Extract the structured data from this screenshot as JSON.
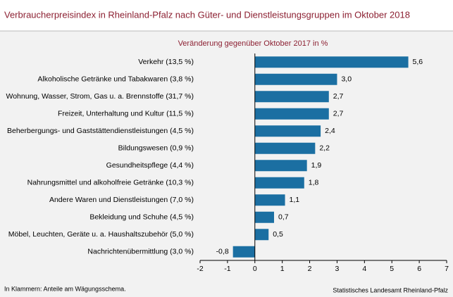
{
  "chart_data": {
    "type": "bar",
    "orientation": "horizontal",
    "title": "Verbraucherpreisindex in Rheinland-Pfalz nach Güter- und Dienstleistungsgruppen im Oktober 2018",
    "subtitle": "Veränderung gegenüber Oktober 2017 in %",
    "categories": [
      "Verkehr (13,5 %)",
      "Alkoholische Getränke und Tabakwaren (3,8 %)",
      "Wohnung, Wasser, Strom, Gas u. a. Brennstoffe (31,7 %)",
      "Freizeit, Unterhaltung und Kultur (11,5 %)",
      "Beherbergungs- und Gaststättendienstleistungen (4,5 %)",
      "Bildungswesen (0,9 %)",
      "Gesundheitspflege (4,4 %)",
      "Nahrungsmittel und alkoholfreie Getränke (10,3 %)",
      "Andere Waren und Dienstleistungen (7,0 %)",
      "Bekleidung und Schuhe (4,5 %)",
      "Möbel, Leuchten, Geräte u. a. Haushaltszubehör (5,0 %)",
      "Nachrichtenübermittlung (3,0 %)"
    ],
    "values": [
      5.6,
      3.0,
      2.7,
      2.7,
      2.4,
      2.2,
      1.9,
      1.8,
      1.1,
      0.7,
      0.5,
      -0.8
    ],
    "value_labels": [
      "5,6",
      "3,0",
      "2,7",
      "2,7",
      "2,4",
      "2,2",
      "1,9",
      "1,8",
      "1,1",
      "0,7",
      "0,5",
      "-0,8"
    ],
    "color": "#1b6fa2",
    "xlim": [
      -2,
      7
    ],
    "xticks": [
      -2,
      -1,
      0,
      1,
      2,
      3,
      4,
      5,
      6,
      7
    ],
    "footnote": "In Klammern: Anteile am Wägungsschema.",
    "source": "Statistisches Landesamt Rheinland-Pfalz"
  }
}
